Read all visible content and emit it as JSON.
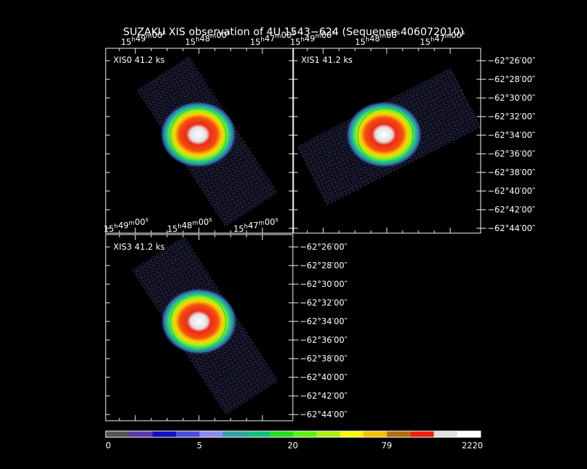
{
  "title": "SUZAKU XIS observation of 4U 1543−624  (Sequence 406072010)",
  "panels": [
    {
      "label": "XIS0 41.2 ks",
      "ra_labels": [
        "15h49m00s",
        "15h48m00s",
        "15h47m00s"
      ]
    },
    {
      "label": "XIS1 41.2 ks",
      "ra_labels": [
        "15h49m00s",
        "15h48m00s",
        "15h47m00s"
      ],
      "dec_labels": [
        "−62°26′00″",
        "−62°28′00″",
        "−62°30′00″",
        "−62°32′00″",
        "−62°34′00″",
        "−62°36′00″",
        "−62°38′00″",
        "−62°40′00″",
        "−62°42′00″",
        "−62°44′00″"
      ]
    },
    {
      "label": "XIS3 41.2 ks",
      "ra_labels": [
        "15h49m00s",
        "15h48m00s",
        "15h47m00s"
      ],
      "dec_labels": [
        "−62°26′00″",
        "−62°28′00″",
        "−62°30′00″",
        "−62°32′00″",
        "−62°34′00″",
        "−62°36′00″",
        "−62°38′00″",
        "−62°40′00″",
        "−62°42′00″",
        "−62°44′00″"
      ]
    }
  ],
  "colorbar": {
    "labels": [
      "0",
      "5",
      "20",
      "79",
      "2220"
    ]
  }
}
